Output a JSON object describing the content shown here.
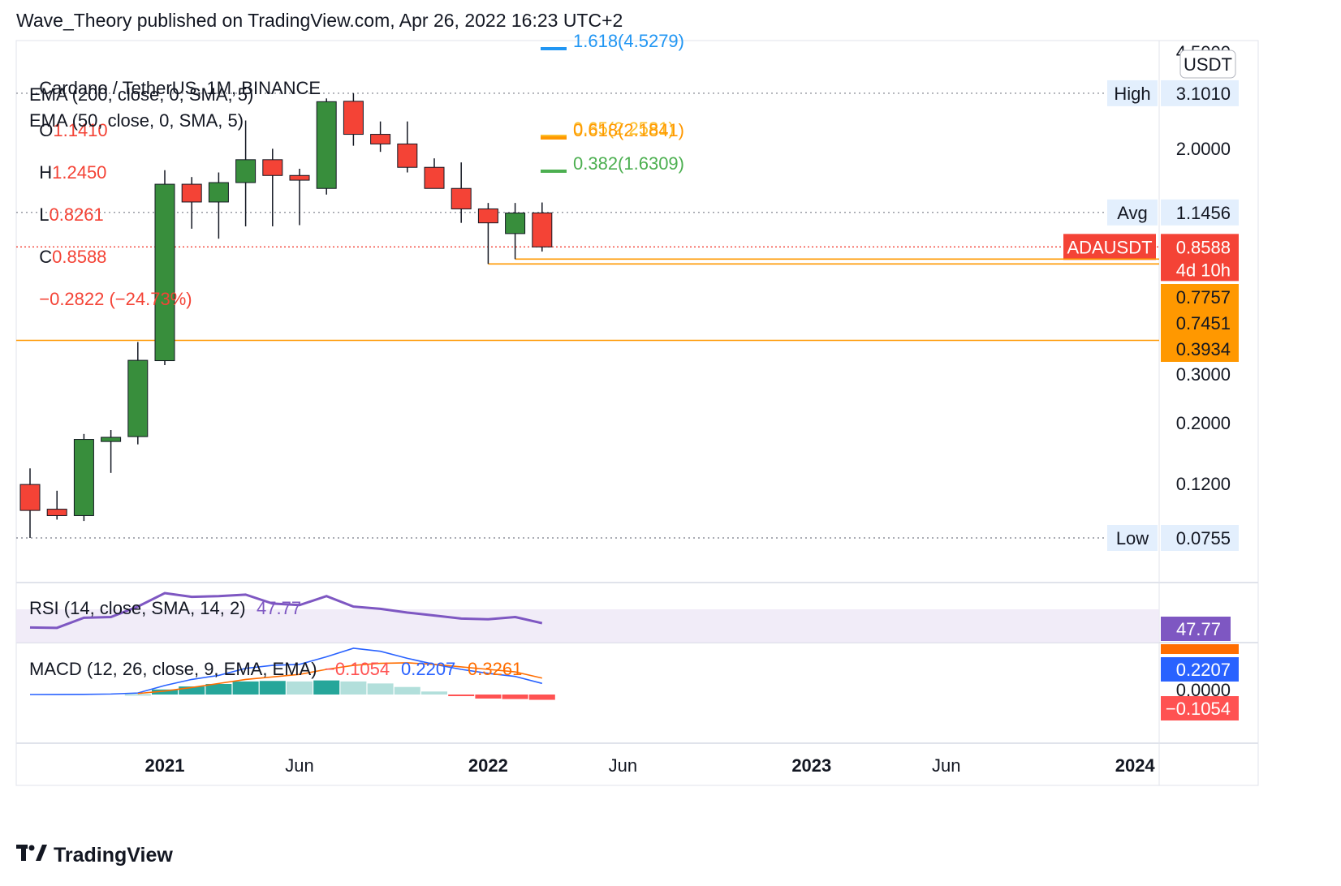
{
  "header": {
    "text": "Wave_Theory published on TradingView.com, Apr 26, 2022 16:23 UTC+2"
  },
  "legend": {
    "symbol": "Cardano / TetherUS, 1M, BINANCE",
    "o_label": "O",
    "o": "1.1410",
    "h_label": "H",
    "h": "1.2450",
    "l_label": "L",
    "l": "0.8261",
    "c_label": "C",
    "c": "0.8588",
    "change": "−0.2822 (−24.73%)",
    "ema200": "EMA (200, close, 0, SMA, 5)",
    "ema50": "EMA (50, close, 0, SMA, 5)"
  },
  "currency_label": "USDT",
  "footer": {
    "brand": "TradingView"
  },
  "colors": {
    "up": "#388e3c",
    "down": "#f44336",
    "orange": "#ff9800",
    "rsi": "#7e57c2",
    "macd": "#2962ff",
    "signal": "#ff6d00",
    "hist_up_strong": "#26a69a",
    "hist_up_weak": "#b2dfdb",
    "hist_down": "#ff5252"
  },
  "chart_data": [
    {
      "type": "candlestick",
      "scale": "log",
      "ylim": [
        0.06,
        4.6
      ],
      "x_start": "2020-08",
      "x_tick_labels": [
        {
          "date": "2021-01",
          "label": "2021"
        },
        {
          "date": "2021-06",
          "label": "Jun"
        },
        {
          "date": "2022-01",
          "label": "2022"
        },
        {
          "date": "2022-06",
          "label": "Jun"
        },
        {
          "date": "2023-01",
          "label": "2023"
        },
        {
          "date": "2023-06",
          "label": "Jun"
        },
        {
          "date": "2024-01",
          "label": "2024"
        }
      ],
      "y_ticks": [
        "4.5000",
        "3.1010",
        "2.0000",
        "1.1456",
        "0.8588",
        "0.7757",
        "0.7451",
        "0.3934",
        "0.3000",
        "0.2000",
        "0.1200",
        "0.0755"
      ],
      "candles": [
        {
          "date": "2020-08",
          "o": 0.118,
          "h": 0.135,
          "l": 0.0755,
          "c": 0.095
        },
        {
          "date": "2020-09",
          "o": 0.096,
          "h": 0.112,
          "l": 0.088,
          "c": 0.091
        },
        {
          "date": "2020-10",
          "o": 0.091,
          "h": 0.18,
          "l": 0.087,
          "c": 0.172
        },
        {
          "date": "2020-11",
          "o": 0.169,
          "h": 0.186,
          "l": 0.13,
          "c": 0.175
        },
        {
          "date": "2020-12",
          "o": 0.176,
          "h": 0.388,
          "l": 0.165,
          "c": 0.333
        },
        {
          "date": "2021-01",
          "o": 0.332,
          "h": 1.63,
          "l": 0.32,
          "c": 1.45
        },
        {
          "date": "2021-02",
          "o": 1.45,
          "h": 1.54,
          "l": 1.0,
          "c": 1.25
        },
        {
          "date": "2021-03",
          "o": 1.25,
          "h": 1.6,
          "l": 0.92,
          "c": 1.47
        },
        {
          "date": "2021-04",
          "o": 1.47,
          "h": 2.47,
          "l": 1.02,
          "c": 1.78
        },
        {
          "date": "2021-05",
          "o": 1.78,
          "h": 1.95,
          "l": 1.02,
          "c": 1.56
        },
        {
          "date": "2021-06",
          "o": 1.56,
          "h": 1.65,
          "l": 1.03,
          "c": 1.5
        },
        {
          "date": "2021-07",
          "o": 1.4,
          "h": 2.97,
          "l": 1.33,
          "c": 2.89
        },
        {
          "date": "2021-08",
          "o": 2.9,
          "h": 3.101,
          "l": 2.0,
          "c": 2.2
        },
        {
          "date": "2021-09",
          "o": 2.2,
          "h": 2.45,
          "l": 1.9,
          "c": 2.03
        },
        {
          "date": "2021-10",
          "o": 2.03,
          "h": 2.45,
          "l": 1.6,
          "c": 1.67
        },
        {
          "date": "2021-11",
          "o": 1.67,
          "h": 1.8,
          "l": 1.4,
          "c": 1.4
        },
        {
          "date": "2021-12",
          "o": 1.4,
          "h": 1.74,
          "l": 1.05,
          "c": 1.18
        },
        {
          "date": "2022-01",
          "o": 1.18,
          "h": 1.24,
          "l": 0.7451,
          "c": 1.05
        },
        {
          "date": "2022-02",
          "o": 0.96,
          "h": 1.24,
          "l": 0.7757,
          "c": 1.14
        },
        {
          "date": "2022-03",
          "o": 1.141,
          "h": 1.245,
          "l": 0.8261,
          "c": 0.8588
        }
      ],
      "levels": [
        {
          "name": "High",
          "value": 3.101,
          "label": "High",
          "price_label": "3.1010",
          "style": "dotted"
        },
        {
          "name": "Avg",
          "value": 1.1456,
          "label": "Avg",
          "price_label": "1.1456",
          "style": "dotted"
        },
        {
          "name": "ADAUSDT",
          "value": 0.8588,
          "label": "ADAUSDT",
          "price_label": "0.8588",
          "countdown": "4d 10h",
          "style": "dotted-red"
        },
        {
          "name": "support-1",
          "value": 0.7757,
          "price_label": "0.7757",
          "from": "2022-02"
        },
        {
          "name": "support-2",
          "value": 0.7451,
          "price_label": "0.7451",
          "from": "2022-01"
        },
        {
          "name": "support-3",
          "value": 0.3934,
          "price_label": "0.3934"
        },
        {
          "name": "Low",
          "value": 0.0755,
          "label": "Low",
          "price_label": "0.0755",
          "style": "dotted"
        }
      ],
      "fib_labels": [
        {
          "text": "1.618(4.5279)",
          "value": 4.5279,
          "color": "#2196f3"
        },
        {
          "text": "0.65(2.2581)",
          "value": 2.2581,
          "color": "#fbc02d"
        },
        {
          "text": "0.618(2.1841)",
          "value": 2.1841,
          "color": "#ff9800"
        },
        {
          "text": "0.382(1.6309)",
          "value": 1.6309,
          "color": "#4caf50"
        }
      ]
    },
    {
      "type": "line",
      "name": "RSI",
      "title": "RSI (14, close, SMA, 14, 2)",
      "last_value": "47.77",
      "values": [
        42.0,
        41.5,
        55.0,
        56.0,
        70.0,
        88.0,
        83.0,
        84.0,
        86.0,
        74.0,
        72.0,
        84.0,
        70.0,
        67.0,
        62.0,
        58.0,
        54.0,
        53.0,
        56.0,
        47.77
      ]
    },
    {
      "type": "bar",
      "name": "MACD",
      "title": "MACD (12, 26, close, 9, EMA, EMA)",
      "values_text": [
        "−0.1054",
        "0.2207",
        "0.3261"
      ],
      "axis_labels": [
        "0.3261",
        "0.2207",
        "0.0000",
        "−0.1054"
      ],
      "histogram": [
        null,
        null,
        null,
        null,
        0.01,
        0.1,
        0.16,
        0.21,
        0.26,
        0.27,
        0.26,
        0.28,
        0.26,
        0.22,
        0.15,
        0.06,
        -0.03,
        -0.08,
        -0.09,
        -0.1054
      ],
      "macd_line": [
        0.0,
        0.001,
        0.003,
        0.01,
        0.03,
        0.18,
        0.3,
        0.38,
        0.52,
        0.58,
        0.6,
        0.75,
        0.92,
        0.86,
        0.72,
        0.6,
        0.5,
        0.42,
        0.36,
        0.2207
      ],
      "signal_line": [
        null,
        null,
        null,
        null,
        0.02,
        0.07,
        0.14,
        0.22,
        0.3,
        0.35,
        0.4,
        0.5,
        0.58,
        0.62,
        0.63,
        0.6,
        0.55,
        0.5,
        0.45,
        0.3261
      ]
    }
  ]
}
